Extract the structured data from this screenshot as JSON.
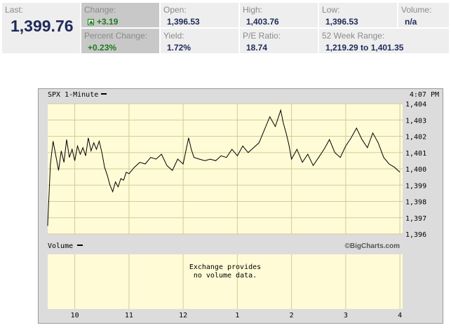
{
  "quote": {
    "last": {
      "label": "Last:",
      "value": "1,399.76"
    },
    "change": {
      "label": "Change:",
      "value": "+3.19",
      "icon": "up-arrow-icon"
    },
    "percent_change": {
      "label": "Percent Change:",
      "value": "+0.23%"
    },
    "open": {
      "label": "Open:",
      "value": "1,396.53"
    },
    "yield": {
      "label": "Yield:",
      "value": "1.72%"
    },
    "high": {
      "label": "High:",
      "value": "1,403.76"
    },
    "pe_ratio": {
      "label": "P/E Ratio:",
      "value": "18.74"
    },
    "low": {
      "label": "Low:",
      "value": "1,396.53"
    },
    "week52": {
      "label": "52 Week Range:",
      "value": "1,219.29 to 1,401.35"
    },
    "volume": {
      "label": "Volume:",
      "value": "n/a"
    }
  },
  "chart": {
    "price_title": "SPX 1-Minute",
    "time": "4:07 PM",
    "volume_title": "Volume",
    "credit": "©BigCharts.com",
    "no_volume_line1": "Exchange provides",
    "no_volume_line2": "no volume data.",
    "y_ticks": [
      "1,404",
      "1,403",
      "1,402",
      "1,401",
      "1,400",
      "1,399",
      "1,398",
      "1,397",
      "1,396"
    ],
    "x_ticks": [
      "10",
      "11",
      "12",
      "1",
      "2",
      "3",
      "4"
    ],
    "colors": {
      "plot_bg": "#fffbd6",
      "grid": "#cfcc98",
      "line": "#000000",
      "frame_bg": "#dcdcdc"
    }
  },
  "chart_data": {
    "type": "line",
    "title": "SPX 1-Minute",
    "ylim": [
      1396,
      1404
    ],
    "y_ticks": [
      1404,
      1403,
      1402,
      1401,
      1400,
      1399,
      1398,
      1397,
      1396
    ],
    "x_ticks": [
      "10",
      "11",
      "12",
      "1",
      "2",
      "3",
      "4"
    ],
    "grid": true,
    "series": [
      {
        "name": "SPX",
        "x": [
          9.5,
          9.55,
          9.6,
          9.65,
          9.7,
          9.75,
          9.8,
          9.85,
          9.9,
          9.95,
          10.0,
          10.05,
          10.1,
          10.15,
          10.2,
          10.25,
          10.3,
          10.35,
          10.4,
          10.45,
          10.5,
          10.55,
          10.6,
          10.65,
          10.7,
          10.75,
          10.8,
          10.85,
          10.9,
          10.95,
          11.0,
          11.1,
          11.2,
          11.3,
          11.4,
          11.5,
          11.6,
          11.7,
          11.8,
          11.9,
          12.0,
          12.05,
          12.1,
          12.15,
          12.2,
          12.3,
          12.4,
          12.5,
          12.6,
          12.7,
          12.8,
          12.9,
          13.0,
          13.1,
          13.2,
          13.3,
          13.4,
          13.5,
          13.6,
          13.7,
          13.8,
          13.85,
          13.9,
          13.95,
          14.0,
          14.1,
          14.2,
          14.3,
          14.4,
          14.5,
          14.6,
          14.7,
          14.8,
          14.9,
          15.0,
          15.1,
          15.2,
          15.3,
          15.4,
          15.5,
          15.6,
          15.7,
          15.8,
          15.9,
          16.0
        ],
        "values": [
          1396.6,
          1400.3,
          1401.7,
          1400.8,
          1399.9,
          1401.1,
          1400.4,
          1401.8,
          1400.7,
          1401.2,
          1400.5,
          1401.4,
          1400.9,
          1401.3,
          1400.8,
          1401.9,
          1401.1,
          1401.6,
          1401.2,
          1401.7,
          1401.0,
          1400.1,
          1399.6,
          1399.0,
          1398.6,
          1399.2,
          1398.9,
          1399.4,
          1399.3,
          1399.8,
          1399.7,
          1400.1,
          1400.4,
          1400.3,
          1400.7,
          1400.6,
          1400.9,
          1400.2,
          1399.9,
          1400.6,
          1400.3,
          1401.1,
          1401.9,
          1401.2,
          1400.7,
          1400.6,
          1400.5,
          1400.6,
          1400.5,
          1400.8,
          1400.7,
          1401.2,
          1400.8,
          1401.4,
          1401.0,
          1401.3,
          1401.6,
          1402.4,
          1403.2,
          1402.6,
          1403.6,
          1402.8,
          1402.2,
          1401.5,
          1400.6,
          1401.2,
          1400.4,
          1400.9,
          1400.2,
          1400.7,
          1401.2,
          1401.8,
          1401.0,
          1400.7,
          1401.4,
          1401.9,
          1402.5,
          1401.8,
          1401.3,
          1402.2,
          1401.6,
          1400.7,
          1400.3,
          1400.1,
          1399.8
        ]
      }
    ]
  }
}
